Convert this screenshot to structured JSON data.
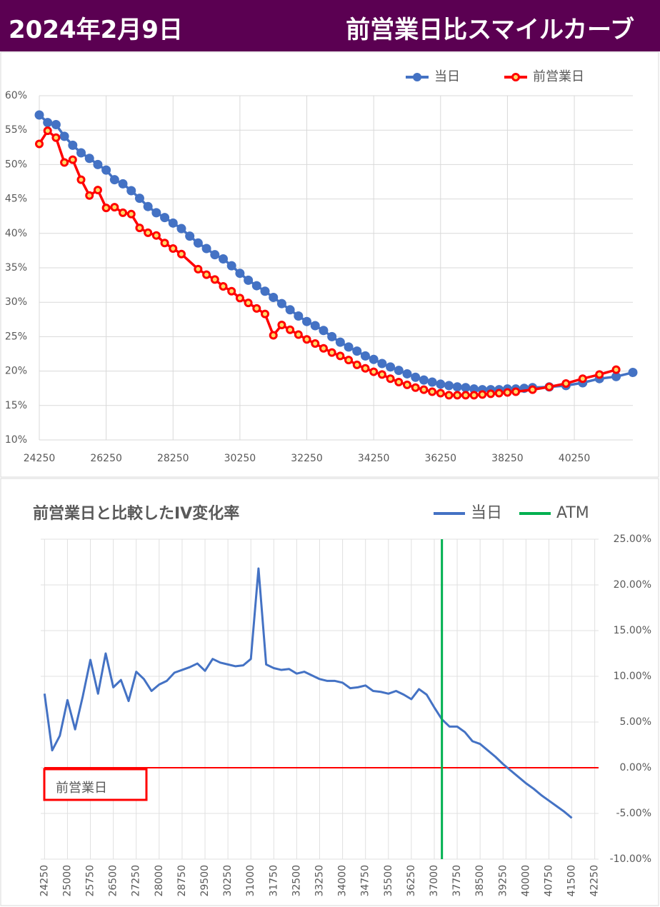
{
  "header": {
    "date": "2024年2月9日",
    "title": "前営業日比スマイルカーブ"
  },
  "chart_data": [
    {
      "type": "line",
      "markers": true,
      "grid": true,
      "legend": "top-right",
      "xlim": [
        24250,
        42000
      ],
      "xticks": [
        24250,
        26250,
        28250,
        30250,
        32250,
        34250,
        36250,
        38250,
        40250
      ],
      "ylim": [
        10,
        60
      ],
      "yticks": [
        {
          "value": 10,
          "label": "10%"
        },
        {
          "value": 15,
          "label": "15%"
        },
        {
          "value": 20,
          "label": "20%"
        },
        {
          "value": 25,
          "label": "25%"
        },
        {
          "value": 30,
          "label": "30%"
        },
        {
          "value": 35,
          "label": "35%"
        },
        {
          "value": 40,
          "label": "40%"
        },
        {
          "value": 45,
          "label": "45%"
        },
        {
          "value": 50,
          "label": "50%"
        },
        {
          "value": 55,
          "label": "55%"
        },
        {
          "value": 60,
          "label": "60%"
        }
      ],
      "series": [
        {
          "name": "当日",
          "color": "#4472c4",
          "x": [
            24250,
            24500,
            24750,
            25000,
            25250,
            25500,
            25750,
            26000,
            26250,
            26500,
            26750,
            27000,
            27250,
            27500,
            27750,
            28000,
            28250,
            28500,
            28750,
            29000,
            29250,
            29500,
            29750,
            30000,
            30250,
            30500,
            30750,
            31000,
            31250,
            31500,
            31750,
            32000,
            32250,
            32500,
            32750,
            33000,
            33250,
            33500,
            33750,
            34000,
            34250,
            34500,
            34750,
            35000,
            35250,
            35500,
            35750,
            36000,
            36250,
            36500,
            36750,
            37000,
            37250,
            37500,
            37750,
            38000,
            38250,
            38500,
            38750,
            39000,
            39500,
            40000,
            40500,
            41000,
            41500,
            42000
          ],
          "values": [
            57.2,
            56.1,
            55.8,
            54.1,
            52.8,
            51.7,
            50.9,
            50.0,
            49.2,
            47.8,
            47.2,
            46.2,
            45.1,
            43.9,
            43.0,
            42.3,
            41.5,
            40.7,
            39.6,
            38.6,
            37.8,
            36.9,
            36.3,
            35.3,
            34.2,
            33.2,
            32.4,
            31.6,
            30.7,
            29.8,
            28.9,
            28.0,
            27.2,
            26.6,
            25.9,
            25.0,
            24.2,
            23.5,
            22.9,
            22.2,
            21.7,
            21.1,
            20.6,
            20.1,
            19.6,
            19.1,
            18.7,
            18.4,
            18.1,
            17.9,
            17.7,
            17.6,
            17.4,
            17.3,
            17.3,
            17.3,
            17.4,
            17.4,
            17.5,
            17.6,
            17.7,
            17.9,
            18.3,
            18.9,
            19.2,
            19.8
          ]
        },
        {
          "name": "前営業日",
          "color": "#ff0000",
          "x": [
            24250,
            24500,
            24750,
            25000,
            25250,
            25500,
            25750,
            26000,
            26250,
            26500,
            26750,
            27000,
            27250,
            27500,
            27750,
            28000,
            28250,
            28500,
            29000,
            29250,
            29500,
            29750,
            30000,
            30250,
            30500,
            30750,
            31000,
            31250,
            31500,
            31750,
            32000,
            32250,
            32500,
            32750,
            33000,
            33250,
            33500,
            33750,
            34000,
            34250,
            34500,
            34750,
            35000,
            35250,
            35500,
            35750,
            36000,
            36250,
            36500,
            36750,
            37000,
            37250,
            37500,
            37750,
            38000,
            38250,
            38500,
            39000,
            39500,
            40000,
            40500,
            41000,
            41500
          ],
          "values": [
            53.0,
            54.9,
            53.9,
            50.3,
            50.7,
            47.8,
            45.5,
            46.3,
            43.7,
            43.8,
            43.0,
            42.8,
            40.8,
            40.1,
            39.7,
            38.6,
            37.8,
            37.0,
            34.8,
            34.0,
            33.3,
            32.3,
            31.6,
            30.6,
            29.9,
            29.1,
            28.3,
            25.2,
            26.7,
            26.0,
            25.3,
            24.6,
            24.0,
            23.3,
            22.7,
            22.2,
            21.6,
            20.9,
            20.4,
            19.9,
            19.5,
            18.9,
            18.4,
            18.0,
            17.6,
            17.3,
            17.0,
            16.8,
            16.5,
            16.5,
            16.5,
            16.5,
            16.6,
            16.7,
            16.8,
            16.9,
            17.0,
            17.3,
            17.7,
            18.2,
            18.9,
            19.5,
            20.2
          ]
        }
      ]
    },
    {
      "type": "line",
      "title": "前営業日と比較したIV変化率",
      "markers": false,
      "grid": true,
      "legend": "top-right",
      "y_axis": "right",
      "xlim": [
        24125,
        42375
      ],
      "xticks": [
        24250,
        25000,
        25750,
        26500,
        27250,
        28000,
        28750,
        29500,
        30250,
        31000,
        31750,
        32500,
        33250,
        34000,
        34750,
        35500,
        36250,
        37000,
        37750,
        38500,
        39250,
        40000,
        40750,
        41500,
        42250
      ],
      "ylim": [
        -10,
        25
      ],
      "yticks": [
        {
          "value": -10,
          "label": "-10.00%"
        },
        {
          "value": -5,
          "label": "-5.00%"
        },
        {
          "value": 0,
          "label": "0.00%"
        },
        {
          "value": 5,
          "label": "5.00%"
        },
        {
          "value": 10,
          "label": "10.00%"
        },
        {
          "value": 15,
          "label": "15.00%"
        },
        {
          "value": 20,
          "label": "20.00%"
        },
        {
          "value": 25,
          "label": "25.00%"
        }
      ],
      "reference_line": {
        "label": "前営業日",
        "value": 0,
        "color": "#ff0000"
      },
      "series": [
        {
          "name": "当日",
          "color": "#4472c4",
          "x": [
            24250,
            24500,
            24750,
            25000,
            25250,
            25500,
            25750,
            26000,
            26250,
            26500,
            26750,
            27000,
            27250,
            27500,
            27750,
            28000,
            28250,
            28500,
            28750,
            29000,
            29250,
            29500,
            29750,
            30000,
            30250,
            30500,
            30750,
            31000,
            31250,
            31500,
            31750,
            32000,
            32250,
            32500,
            32750,
            33000,
            33250,
            33500,
            33750,
            34000,
            34250,
            34500,
            34750,
            35000,
            35250,
            35500,
            35750,
            36000,
            36250,
            36500,
            36750,
            37000,
            37250,
            37500,
            37750,
            38000,
            38250,
            38500,
            38750,
            39000,
            39250,
            39500,
            39750,
            40000,
            40250,
            40500,
            40750,
            41000,
            41250,
            41500
          ],
          "values": [
            8.1,
            1.9,
            3.5,
            7.4,
            4.2,
            7.8,
            11.8,
            8.1,
            12.5,
            8.8,
            9.6,
            7.3,
            10.5,
            9.7,
            8.4,
            9.1,
            9.5,
            10.4,
            10.7,
            11.0,
            11.4,
            10.6,
            11.9,
            11.5,
            11.3,
            11.1,
            11.2,
            11.9,
            21.8,
            11.3,
            10.9,
            10.7,
            10.8,
            10.3,
            10.5,
            10.1,
            9.7,
            9.5,
            9.5,
            9.3,
            8.7,
            8.8,
            9.0,
            8.4,
            8.3,
            8.1,
            8.4,
            8.0,
            7.5,
            8.6,
            8.0,
            6.6,
            5.3,
            4.5,
            4.5,
            3.9,
            2.9,
            2.6,
            1.9,
            1.2,
            0.4,
            -0.3,
            -1.0,
            -1.7,
            -2.3,
            -3.0,
            -3.6,
            -4.2,
            -4.8,
            -5.5
          ]
        },
        {
          "name": "ATM",
          "color": "#00b050",
          "x": [
            37250,
            37250
          ],
          "values": [
            -10,
            25
          ]
        }
      ]
    }
  ]
}
